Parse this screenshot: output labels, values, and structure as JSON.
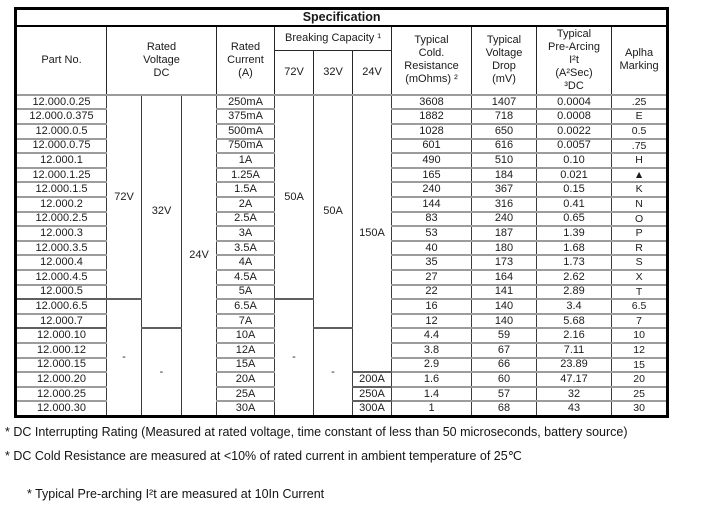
{
  "title": "Specification",
  "header": {
    "part_no": "Part No.",
    "rated_voltage": "Rated\nVoltage\nDC",
    "rated_current": "Rated\nCurrent\n(A)",
    "breaking_capacity": "Breaking Capacity ¹",
    "bc_sub": [
      "72V",
      "32V",
      "24V"
    ],
    "cold_resistance": "Typical\nCold.\nResistance\n(mOhms) ²",
    "voltage_drop": "Typical\nVoltage\nDrop\n(mV)",
    "pre_arcing": "Typical\nPre-Arcing\nI²t\n(A²Sec)\n³DC",
    "alpha_marking": "Aplha\nMarking"
  },
  "merged": {
    "rated_72v": [
      {
        "label": "72V",
        "span": 14
      },
      {
        "label": "-",
        "span": 8
      }
    ],
    "rated_32v": [
      {
        "label": "32V",
        "span": 16
      },
      {
        "label": "-",
        "span": 6
      }
    ],
    "rated_24v": [
      {
        "label": "24V",
        "span": 22
      }
    ],
    "bc_72v": [
      {
        "label": "50A",
        "span": 14
      },
      {
        "label": "-",
        "span": 8
      }
    ],
    "bc_32v": [
      {
        "label": "50A",
        "span": 16
      },
      {
        "label": "-",
        "span": 6
      }
    ],
    "bc_24v": [
      {
        "label": "150A",
        "span": 19
      },
      {
        "label": "200A",
        "span": 1
      },
      {
        "label": "250A",
        "span": 1
      },
      {
        "label": "300A",
        "span": 1
      }
    ]
  },
  "rows": [
    {
      "part_no": "12.000.0.25",
      "rated_current": "250mA",
      "cold_resistance": "3608",
      "voltage_drop": "1407",
      "pre_arcing": "0.0004",
      "alpha": ".25"
    },
    {
      "part_no": "12.000.0.375",
      "rated_current": "375mA",
      "cold_resistance": "1882",
      "voltage_drop": "718",
      "pre_arcing": "0.0008",
      "alpha": "E"
    },
    {
      "part_no": "12.000.0.5",
      "rated_current": "500mA",
      "cold_resistance": "1028",
      "voltage_drop": "650",
      "pre_arcing": "0.0022",
      "alpha": "0.5"
    },
    {
      "part_no": "12.000.0.75",
      "rated_current": "750mA",
      "cold_resistance": "601",
      "voltage_drop": "616",
      "pre_arcing": "0.0057",
      "alpha": ".75"
    },
    {
      "part_no": "12.000.1",
      "rated_current": "1A",
      "cold_resistance": "490",
      "voltage_drop": "510",
      "pre_arcing": "0.10",
      "alpha": "H"
    },
    {
      "part_no": "12.000.1.25",
      "rated_current": "1.25A",
      "cold_resistance": "165",
      "voltage_drop": "184",
      "pre_arcing": "0.021",
      "alpha": "▲"
    },
    {
      "part_no": "12.000.1.5",
      "rated_current": "1.5A",
      "cold_resistance": "240",
      "voltage_drop": "367",
      "pre_arcing": "0.15",
      "alpha": "K"
    },
    {
      "part_no": "12.000.2",
      "rated_current": "2A",
      "cold_resistance": "144",
      "voltage_drop": "316",
      "pre_arcing": "0.41",
      "alpha": "N"
    },
    {
      "part_no": "12.000.2.5",
      "rated_current": "2.5A",
      "cold_resistance": "83",
      "voltage_drop": "240",
      "pre_arcing": "0.65",
      "alpha": "O"
    },
    {
      "part_no": "12.000.3",
      "rated_current": "3A",
      "cold_resistance": "53",
      "voltage_drop": "187",
      "pre_arcing": "1.39",
      "alpha": "P"
    },
    {
      "part_no": "12.000.3.5",
      "rated_current": "3.5A",
      "cold_resistance": "40",
      "voltage_drop": "180",
      "pre_arcing": "1.68",
      "alpha": "R"
    },
    {
      "part_no": "12.000.4",
      "rated_current": "4A",
      "cold_resistance": "35",
      "voltage_drop": "173",
      "pre_arcing": "1.73",
      "alpha": "S"
    },
    {
      "part_no": "12.000.4.5",
      "rated_current": "4.5A",
      "cold_resistance": "27",
      "voltage_drop": "164",
      "pre_arcing": "2.62",
      "alpha": "X"
    },
    {
      "part_no": "12.000.5",
      "rated_current": "5A",
      "cold_resistance": "22",
      "voltage_drop": "141",
      "pre_arcing": "2.89",
      "alpha": "T"
    },
    {
      "part_no": "12.000.6.5",
      "rated_current": "6.5A",
      "cold_resistance": "16",
      "voltage_drop": "140",
      "pre_arcing": "3.4",
      "alpha": "6.5"
    },
    {
      "part_no": "12.000.7",
      "rated_current": "7A",
      "cold_resistance": "12",
      "voltage_drop": "140",
      "pre_arcing": "5.68",
      "alpha": "7"
    },
    {
      "part_no": "12.000.10",
      "rated_current": "10A",
      "cold_resistance": "4.4",
      "voltage_drop": "59",
      "pre_arcing": "2.16",
      "alpha": "10"
    },
    {
      "part_no": "12.000.12",
      "rated_current": "12A",
      "cold_resistance": "3.8",
      "voltage_drop": "67",
      "pre_arcing": "7.11",
      "alpha": "12"
    },
    {
      "part_no": "12.000.15",
      "rated_current": "15A",
      "cold_resistance": "2.9",
      "voltage_drop": "66",
      "pre_arcing": "23.89",
      "alpha": "15"
    },
    {
      "part_no": "12.000.20",
      "rated_current": "20A",
      "cold_resistance": "1.6",
      "voltage_drop": "60",
      "pre_arcing": "47.17",
      "alpha": "20"
    },
    {
      "part_no": "12.000.25",
      "rated_current": "25A",
      "cold_resistance": "1.4",
      "voltage_drop": "57",
      "pre_arcing": "32",
      "alpha": "25"
    },
    {
      "part_no": "12.000.30",
      "rated_current": "30A",
      "cold_resistance": "1",
      "voltage_drop": "68",
      "pre_arcing": "43",
      "alpha": "30"
    }
  ],
  "footnotes": [
    "* DC Interrupting Rating (Measured at rated voltage, time constant of less than 50 microseconds, battery source)",
    "* DC Cold Resistance are measured at <10% of rated current in ambient temperature of 25℃",
    "* Typical Pre-arching I²t are measured at 10In Current"
  ]
}
